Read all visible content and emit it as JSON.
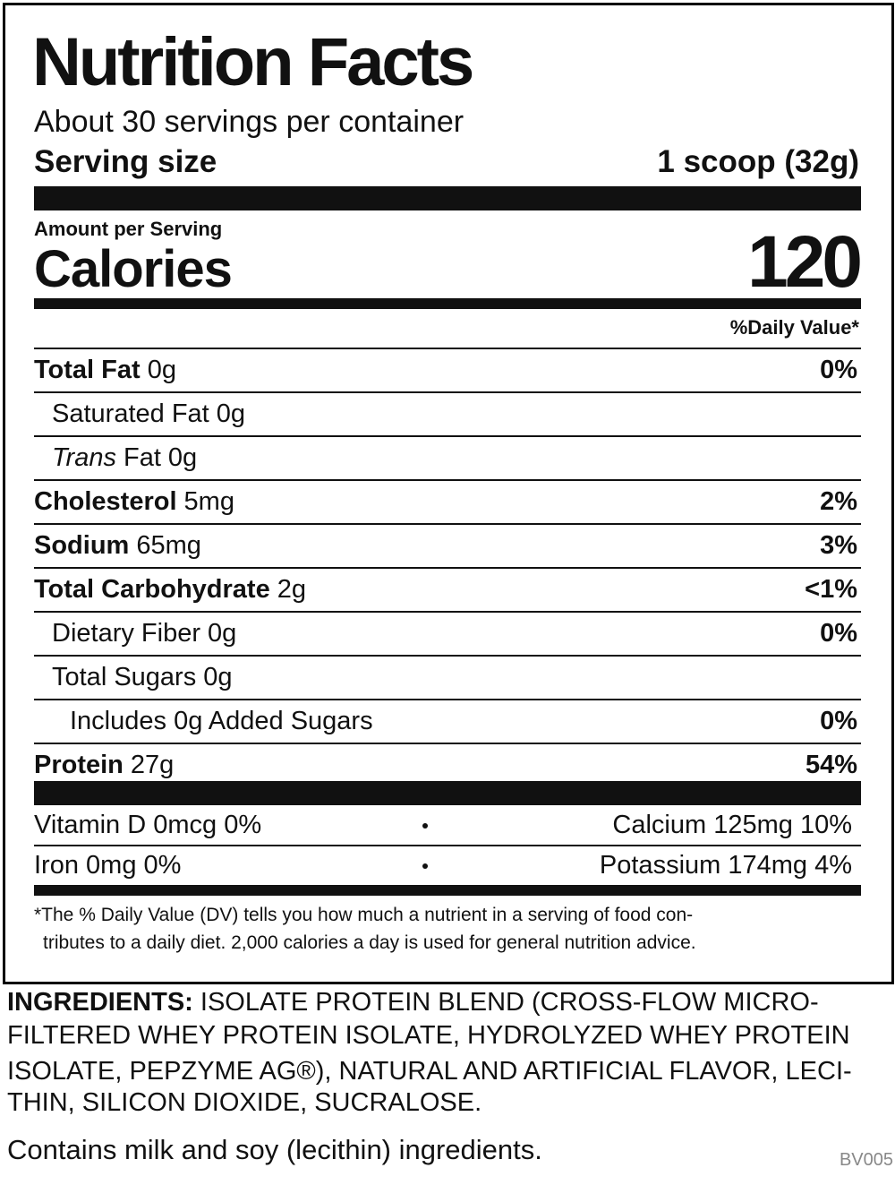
{
  "label": {
    "title": "Nutrition Facts",
    "servings": "About 30 servings per container",
    "serving_size": {
      "label": "Serving size",
      "value": "1 scoop (32g)"
    },
    "amount_per_serving": "Amount per Serving",
    "calories": {
      "label": "Calories",
      "value": "120"
    },
    "daily_value_header": "%Daily Value*",
    "nutrients": [
      {
        "name": "Total Fat",
        "amount": "0g",
        "dv": "0%"
      },
      {
        "name": "Saturated Fat",
        "amount": "0g"
      },
      {
        "name_italic": "Trans",
        "name": "Fat",
        "amount": "0g"
      },
      {
        "name": "Cholesterol",
        "amount": "5mg",
        "dv": "2%"
      },
      {
        "name": "Sodium",
        "amount": "65mg",
        "dv": "3%"
      },
      {
        "name": "Total Carbohydrate",
        "amount": "2g",
        "dv": "<1%"
      },
      {
        "name": "Dietary Fiber",
        "amount": "0g",
        "dv": "0%"
      },
      {
        "name": "Total Sugars",
        "amount": "0g"
      },
      {
        "name": "Includes 0g Added Sugars",
        "dv": "0%"
      },
      {
        "name": "Protein",
        "amount": "27g",
        "dv": "54%"
      }
    ],
    "vitamins": [
      [
        "Vitamin D 0mcg 0%",
        "Calcium 125mg 10%"
      ],
      [
        "Iron 0mg 0%",
        "Potassium 174mg 4%"
      ]
    ],
    "footnote": [
      "*The % Daily Value (DV) tells you how much a nutrient in a serving of food con-",
      "tributes to a daily diet. 2,000 calories a day is used for general nutrition advice."
    ]
  },
  "ingredients": {
    "label": "INGREDIENTS:",
    "lines": [
      "ISOLATE PROTEIN BLEND (CROSS-FLOW MICRO-",
      "FILTERED WHEY PROTEIN ISOLATE, HYDROLYZED WHEY PROTEIN",
      "ISOLATE, PEPZYME AG®), NATURAL AND ARTIFICIAL FLAVOR, LECI-",
      "THIN, SILICON DIOXIDE, SUCRALOSE."
    ]
  },
  "allergens": "Contains milk and soy (lecithin) ingredients.",
  "code": "BV005"
}
